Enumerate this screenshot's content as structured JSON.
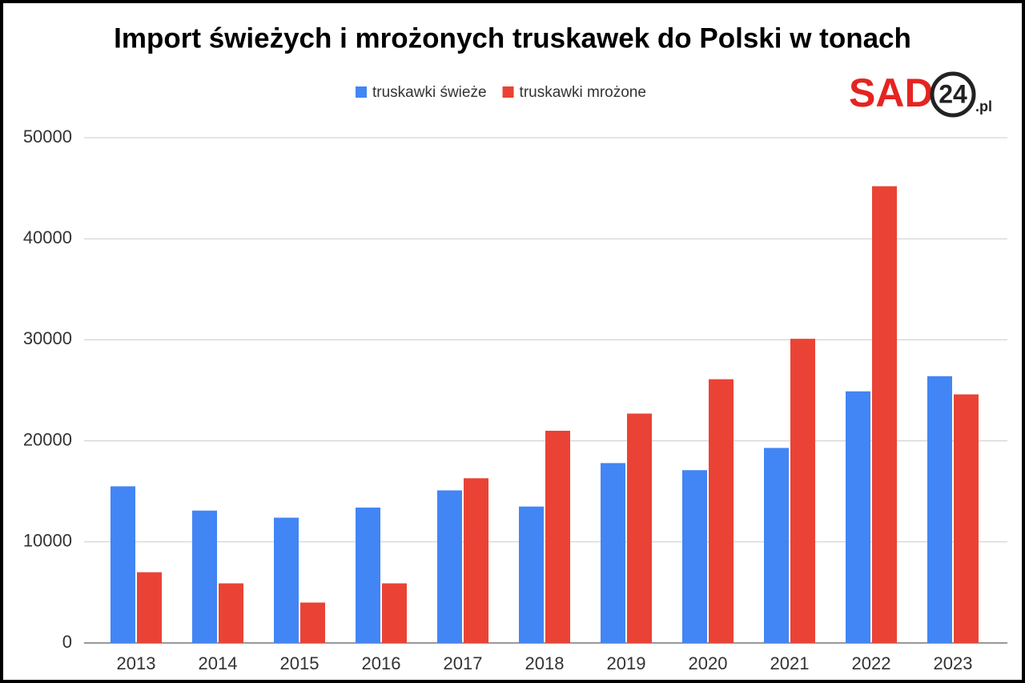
{
  "chart_data": {
    "type": "bar",
    "title": "Import świeżych i mrożonych truskawek do Polski w tonach",
    "logo": {
      "main": "SAD",
      "number": "24",
      "suffix": ".pl"
    },
    "categories": [
      "2013",
      "2014",
      "2015",
      "2016",
      "2017",
      "2018",
      "2019",
      "2020",
      "2021",
      "2022",
      "2023"
    ],
    "series": [
      {
        "name": "truskawki świeże",
        "color": "#4285f4",
        "values": [
          15500,
          13100,
          12400,
          13400,
          15100,
          13500,
          17800,
          17100,
          19300,
          24900,
          26400
        ]
      },
      {
        "name": "truskawki mrożone",
        "color": "#ea4335",
        "values": [
          7000,
          5900,
          4000,
          5900,
          16300,
          21000,
          22700,
          26100,
          30100,
          45200,
          24600
        ]
      }
    ],
    "ylim": [
      0,
      50000
    ],
    "yticks": [
      0,
      10000,
      20000,
      30000,
      40000,
      50000
    ],
    "grid": true,
    "legend": "top"
  }
}
